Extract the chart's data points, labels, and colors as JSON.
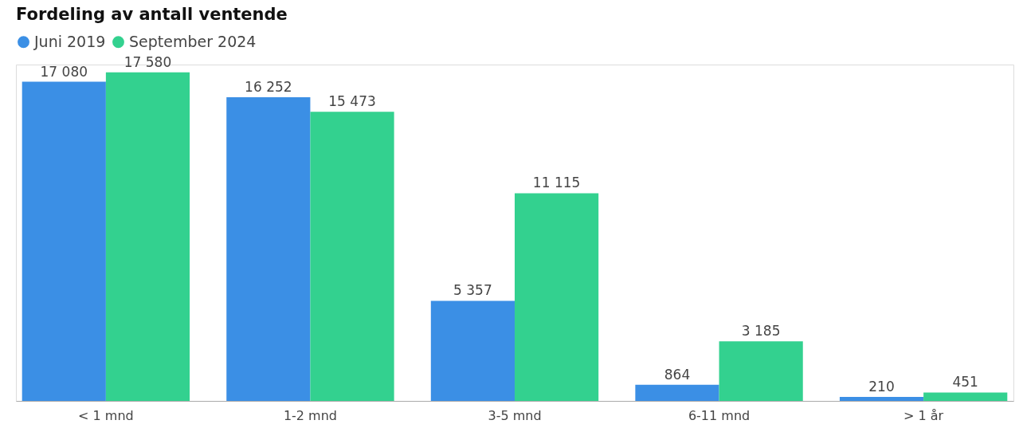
{
  "chart_data": {
    "type": "bar",
    "title": "Fordeling av antall ventende",
    "categories": [
      "< 1 mnd",
      "1-2 mnd",
      "3-5 mnd",
      "6-11 mnd",
      "> 1 år"
    ],
    "series": [
      {
        "name": "Juni 2019",
        "color": "#3b8fe5",
        "values": [
          17080,
          16252,
          5357,
          864,
          210
        ],
        "value_labels": [
          "17 080",
          "16 252",
          "5 357",
          "864",
          "210"
        ]
      },
      {
        "name": "September 2024",
        "color": "#33d18f",
        "values": [
          17580,
          15473,
          11115,
          3185,
          451
        ],
        "value_labels": [
          "17 580",
          "15 473",
          "11 115",
          "3 185",
          "451"
        ]
      }
    ],
    "legend": "top left",
    "grid": false,
    "tick_labels": "x"
  }
}
